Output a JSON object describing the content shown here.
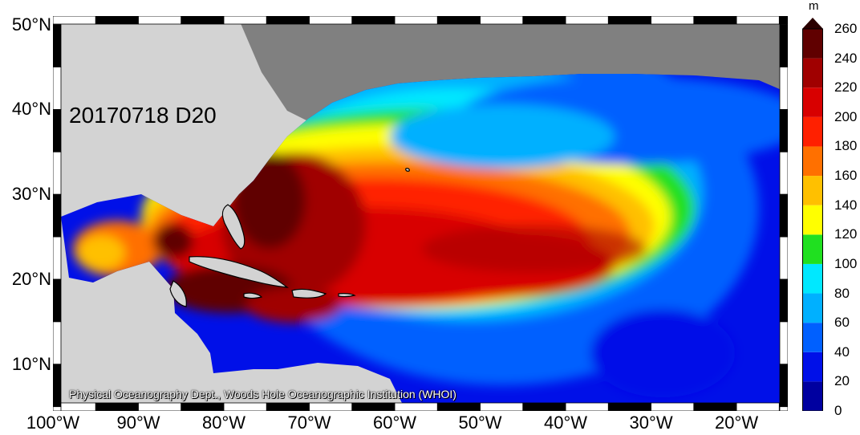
{
  "map": {
    "date_label": "20170718 D20",
    "credit": "Physical Oceanography Dept., Woods Hole Oceanographic Institution (WHOI)",
    "colors": {
      "land": "#d3d3d3",
      "unanalyzed_ocean": "#808080",
      "coastline": "#000000"
    },
    "lon_labels": [
      {
        "text": "100°W",
        "lon": -100
      },
      {
        "text": "90°W",
        "lon": -90
      },
      {
        "text": "80°W",
        "lon": -80
      },
      {
        "text": "70°W",
        "lon": -70
      },
      {
        "text": "60°W",
        "lon": -60
      },
      {
        "text": "50°W",
        "lon": -50
      },
      {
        "text": "40°W",
        "lon": -40
      },
      {
        "text": "30°W",
        "lon": -30
      },
      {
        "text": "20°W",
        "lon": -20
      }
    ],
    "lat_labels": [
      {
        "text": "50°N",
        "lat": 50
      },
      {
        "text": "40°N",
        "lat": 40
      },
      {
        "text": "30°N",
        "lat": 30
      },
      {
        "text": "20°N",
        "lat": 20
      },
      {
        "text": "10°N",
        "lat": 10
      }
    ],
    "colorbar": {
      "unit": "m",
      "min": 0,
      "max": 260,
      "ticks": [
        "260",
        "240",
        "220",
        "200",
        "180",
        "160",
        "140",
        "120",
        "100",
        "80",
        "60",
        "40",
        "20",
        "0"
      ],
      "levels": [
        {
          "from": 0,
          "to": 20,
          "color": "#0000a0"
        },
        {
          "from": 20,
          "to": 40,
          "color": "#0010e8"
        },
        {
          "from": 40,
          "to": 60,
          "color": "#0060ff"
        },
        {
          "from": 60,
          "to": 80,
          "color": "#00b0ff"
        },
        {
          "from": 80,
          "to": 100,
          "color": "#00e8ff"
        },
        {
          "from": 100,
          "to": 120,
          "color": "#20e020"
        },
        {
          "from": 120,
          "to": 140,
          "color": "#ffff00"
        },
        {
          "from": 140,
          "to": 160,
          "color": "#ffc000"
        },
        {
          "from": 160,
          "to": 180,
          "color": "#ff7000"
        },
        {
          "from": 180,
          "to": 200,
          "color": "#ff2000"
        },
        {
          "from": 200,
          "to": 220,
          "color": "#d80000"
        },
        {
          "from": 220,
          "to": 240,
          "color": "#a00000"
        },
        {
          "from": 240,
          "to": 260,
          "color": "#600000"
        },
        {
          "from": 260,
          "to": 280,
          "color": "#2a0000"
        }
      ]
    }
  }
}
